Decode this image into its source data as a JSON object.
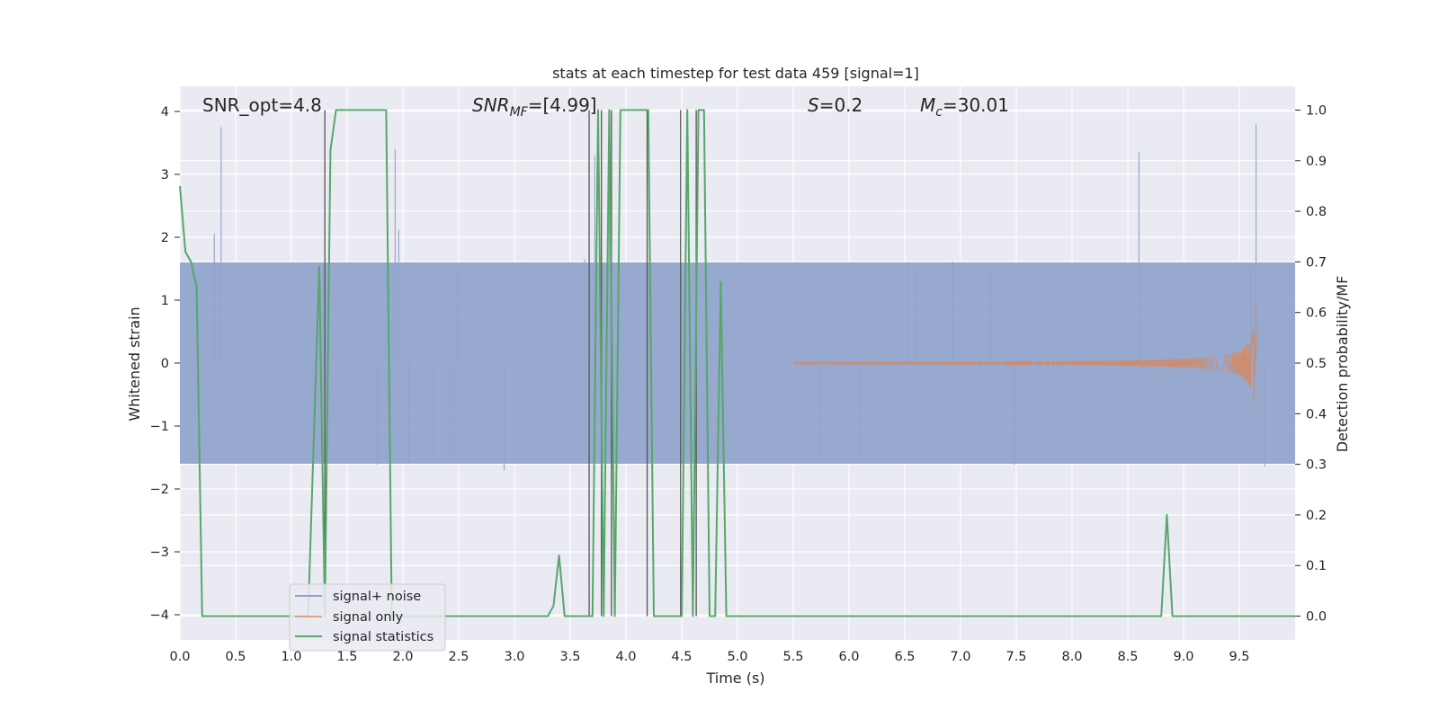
{
  "chart_data": {
    "type": "line",
    "title": "stats at each timestep for test data 459 [signal=1]",
    "xlabel": "Time (s)",
    "ylabel": "Whitened strain",
    "ylabel_right": "Detection probability/MF",
    "xlim": [
      0.0,
      10.0
    ],
    "ylim": [
      -4.4,
      4.4
    ],
    "ylim_right": [
      -0.047,
      1.047
    ],
    "x_ticks": [
      "0.0",
      "0.5",
      "1.0",
      "1.5",
      "2.0",
      "2.5",
      "3.0",
      "3.5",
      "4.0",
      "4.5",
      "5.0",
      "5.5",
      "6.0",
      "6.5",
      "7.0",
      "7.5",
      "8.0",
      "8.5",
      "9.0",
      "9.5"
    ],
    "y_ticks": [
      "4",
      "3",
      "2",
      "1",
      "0",
      "−1",
      "−2",
      "−3",
      "−4"
    ],
    "y_right_ticks": [
      "1.0",
      "0.9",
      "0.8",
      "0.7",
      "0.6",
      "0.5",
      "0.4",
      "0.3",
      "0.2",
      "0.1",
      "0.0"
    ],
    "grid": true,
    "legend_position": "lower-left",
    "annotations": {
      "snr_opt": "SNR_opt=4.8",
      "snr_mf_name": "SNR",
      "snr_mf_sub": "MF",
      "snr_mf_value": "=[4.99]",
      "s_name": "S",
      "s_value": "=0.2",
      "mc_name": "M",
      "mc_sub": "c",
      "mc_value": "=30.01"
    },
    "series": [
      {
        "name": "signal+ noise",
        "color": "#8fa3cc",
        "description_values": "noisy whitened strain, ~Gaussian, std ~0.8",
        "band_low": -1.6,
        "band_high": 1.6,
        "peak_times": [
          0.37,
          1.93,
          3.72,
          3.85,
          9.65,
          8.6
        ],
        "peak_values": [
          3.75,
          3.4,
          3.3,
          3.3,
          3.8,
          3.35
        ]
      },
      {
        "name": "signal only",
        "color": "#dd8452",
        "chirp_start": 5.5,
        "chirp_end": 9.65,
        "peak_amplitude": 1.05
      },
      {
        "name": "signal statistics",
        "color": "#55a868",
        "axis": "right",
        "x": [
          0.0,
          0.05,
          0.1,
          0.15,
          0.2,
          0.25,
          0.3,
          0.35,
          1.05,
          1.15,
          1.25,
          1.3,
          1.35,
          1.4,
          1.45,
          1.5,
          1.55,
          1.6,
          1.65,
          1.85,
          1.9,
          1.95,
          2.0,
          3.3,
          3.35,
          3.4,
          3.45,
          3.7,
          3.75,
          3.8,
          3.85,
          3.9,
          3.95,
          4.0,
          4.1,
          4.2,
          4.25,
          4.45,
          4.5,
          4.55,
          4.6,
          4.65,
          4.7,
          4.75,
          4.8,
          4.85,
          4.9,
          8.5,
          8.6,
          8.7,
          8.8,
          8.85,
          8.9,
          9.0,
          10.0
        ],
        "values": [
          0.85,
          0.72,
          0.7,
          0.65,
          0.0,
          0.0,
          0.0,
          0.0,
          0.0,
          0.0,
          0.69,
          0.0,
          0.92,
          1.0,
          1.0,
          1.0,
          1.0,
          1.0,
          1.0,
          1.0,
          0.0,
          0.0,
          0.0,
          0.0,
          0.02,
          0.12,
          0.0,
          0.0,
          1.0,
          0.0,
          1.0,
          0.0,
          1.0,
          1.0,
          1.0,
          1.0,
          0.0,
          0.0,
          0.0,
          1.0,
          0.0,
          1.0,
          1.0,
          0.0,
          0.0,
          0.66,
          0.0,
          0.0,
          0.0,
          0.0,
          0.0,
          0.2,
          0.0,
          0.0,
          0.0
        ]
      }
    ],
    "vertical_markers_x": [
      1.3,
      3.67,
      3.78,
      3.87,
      4.19,
      4.49,
      4.63
    ]
  }
}
